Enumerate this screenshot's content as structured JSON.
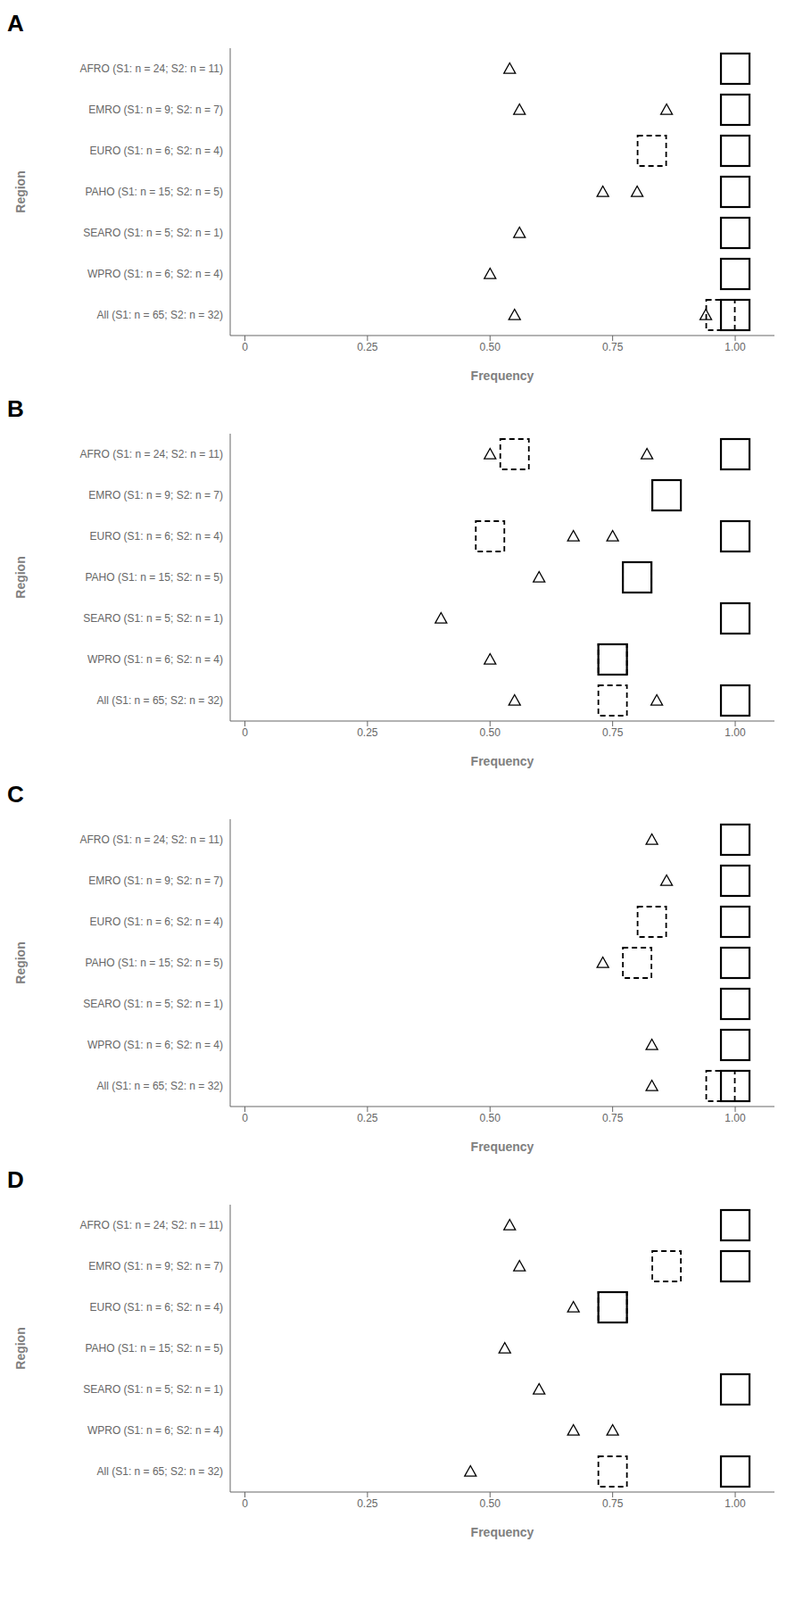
{
  "chart_data": [
    {
      "type": "scatter",
      "title": "A",
      "x_label": "Frequency",
      "y_label": "Region",
      "categories": [
        "AFRO (S1: n = 24; S2: n = 11)",
        "EMRO (S1: n = 9; S2: n = 7)",
        "EURO (S1: n = 6; S2: n = 4)",
        "PAHO (S1: n = 15; S2: n = 5)",
        "SEARO (S1: n = 5; S2: n = 1)",
        "WPRO (S1: n = 6; S2: n = 4)",
        "All (S1: n = 65; S2: n = 32)"
      ],
      "xlim": [
        -0.03,
        1.08
      ],
      "xticks": [
        0,
        0.25,
        {
          "value": 0.5,
          "label": "0.50"
        },
        0.75,
        {
          "value": 1,
          "label": "1.00"
        }
      ],
      "grid": false,
      "series": [
        {
          "marker": "triangle",
          "color": "#000000",
          "values": [
            0.54,
            0.56,
            null,
            0.73,
            0.56,
            0.5,
            0.55
          ]
        },
        {
          "marker": "triangle",
          "color": "#000000",
          "values": [
            null,
            0.86,
            null,
            0.8,
            null,
            null,
            0.94
          ]
        },
        {
          "marker": "square",
          "line_style": "dashed",
          "color": "#000000",
          "values": [
            1.0,
            null,
            0.83,
            null,
            1.0,
            1.0,
            0.97
          ]
        },
        {
          "marker": "square",
          "line_style": "solid",
          "color": "#000000",
          "values": [
            1.0,
            1.0,
            1.0,
            1.0,
            1.0,
            1.0,
            1.0
          ]
        }
      ]
    },
    {
      "type": "scatter",
      "title": "B",
      "x_label": "Frequency",
      "y_label": "Region",
      "categories": [
        "AFRO (S1: n = 24; S2: n = 11)",
        "EMRO (S1: n = 9; S2: n = 7)",
        "EURO (S1: n = 6; S2: n = 4)",
        "PAHO (S1: n = 15; S2: n = 5)",
        "SEARO (S1: n = 5; S2: n = 1)",
        "WPRO (S1: n = 6; S2: n = 4)",
        "All (S1: n = 65; S2: n = 32)"
      ],
      "xlim": [
        -0.03,
        1.08
      ],
      "xticks": [
        0,
        0.25,
        {
          "value": 0.5,
          "label": "0.50"
        },
        0.75,
        {
          "value": 1,
          "label": "1.00"
        }
      ],
      "grid": false,
      "series": [
        {
          "marker": "triangle",
          "color": "#000000",
          "values": [
            0.5,
            null,
            0.67,
            0.6,
            0.4,
            0.5,
            0.55
          ]
        },
        {
          "marker": "triangle",
          "color": "#000000",
          "values": [
            0.82,
            null,
            0.75,
            null,
            null,
            null,
            0.84
          ]
        },
        {
          "marker": "square",
          "line_style": "dashed",
          "color": "#000000",
          "values": [
            0.55,
            0.86,
            0.5,
            0.8,
            1.0,
            0.75,
            0.75
          ]
        },
        {
          "marker": "square",
          "line_style": "solid",
          "color": "#000000",
          "values": [
            1.0,
            0.86,
            1.0,
            0.8,
            1.0,
            0.75,
            1.0
          ]
        }
      ]
    },
    {
      "type": "scatter",
      "title": "C",
      "x_label": "Frequency",
      "y_label": "Region",
      "categories": [
        "AFRO (S1: n = 24; S2: n = 11)",
        "EMRO (S1: n = 9; S2: n = 7)",
        "EURO (S1: n = 6; S2: n = 4)",
        "PAHO (S1: n = 15; S2: n = 5)",
        "SEARO (S1: n = 5; S2: n = 1)",
        "WPRO (S1: n = 6; S2: n = 4)",
        "All (S1: n = 65; S2: n = 32)"
      ],
      "xlim": [
        -0.03,
        1.08
      ],
      "xticks": [
        0,
        0.25,
        {
          "value": 0.5,
          "label": "0.50"
        },
        0.75,
        {
          "value": 1,
          "label": "1.00"
        }
      ],
      "grid": false,
      "series": [
        {
          "marker": "triangle",
          "color": "#000000",
          "values": [
            0.83,
            null,
            null,
            0.73,
            null,
            0.83,
            0.83
          ]
        },
        {
          "marker": "triangle",
          "color": "#000000",
          "values": [
            null,
            0.86,
            null,
            null,
            null,
            null,
            null
          ]
        },
        {
          "marker": "square",
          "line_style": "dashed",
          "color": "#000000",
          "values": [
            1.0,
            null,
            0.83,
            0.8,
            1.0,
            1.0,
            0.97
          ]
        },
        {
          "marker": "square",
          "line_style": "solid",
          "color": "#000000",
          "values": [
            1.0,
            1.0,
            1.0,
            1.0,
            1.0,
            1.0,
            1.0
          ]
        }
      ]
    },
    {
      "type": "scatter",
      "title": "D",
      "x_label": "Frequency",
      "y_label": "Region",
      "categories": [
        "AFRO (S1: n = 24; S2: n = 11)",
        "EMRO (S1: n = 9; S2: n = 7)",
        "EURO (S1: n = 6; S2: n = 4)",
        "PAHO (S1: n = 15; S2: n = 5)",
        "SEARO (S1: n = 5; S2: n = 1)",
        "WPRO (S1: n = 6; S2: n = 4)",
        "All (S1: n = 65; S2: n = 32)"
      ],
      "xlim": [
        -0.03,
        1.08
      ],
      "xticks": [
        0,
        0.25,
        {
          "value": 0.5,
          "label": "0.50"
        },
        0.75,
        {
          "value": 1,
          "label": "1.00"
        }
      ],
      "grid": false,
      "series": [
        {
          "marker": "triangle",
          "color": "#000000",
          "values": [
            0.54,
            0.56,
            0.67,
            0.53,
            0.6,
            0.67,
            0.46
          ]
        },
        {
          "marker": "triangle",
          "color": "#000000",
          "values": [
            null,
            null,
            null,
            null,
            null,
            0.75,
            null
          ]
        },
        {
          "marker": "square",
          "line_style": "dashed",
          "color": "#000000",
          "values": [
            1.0,
            0.86,
            0.75,
            null,
            null,
            null,
            0.75
          ]
        },
        {
          "marker": "square",
          "line_style": "solid",
          "color": "#000000",
          "values": [
            1.0,
            1.0,
            0.75,
            null,
            1.0,
            null,
            1.0
          ]
        }
      ]
    }
  ]
}
